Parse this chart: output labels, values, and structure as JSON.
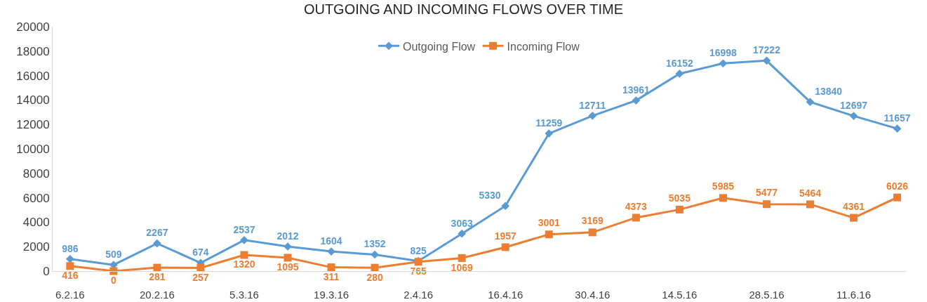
{
  "chart_data": {
    "type": "line",
    "title": "OUTGOING AND INCOMING FLOWS OVER TIME",
    "categories": [
      "6.2.16",
      null,
      "20.2.16",
      null,
      "5.3.16",
      null,
      "19.3.16",
      null,
      "2.4.16",
      null,
      "16.4.16",
      null,
      "30.4.16",
      null,
      "14.5.16",
      null,
      "28.5.16",
      null,
      "11.6.16",
      null
    ],
    "series": [
      {
        "name": "Outgoing Flow",
        "color": "#5b9bd5",
        "marker": "diamond",
        "values": [
          986,
          509,
          2267,
          674,
          2537,
          2012,
          1604,
          1352,
          825,
          3063,
          5330,
          11259,
          12711,
          13961,
          16152,
          16998,
          17222,
          13840,
          12697,
          11657
        ]
      },
      {
        "name": "Incoming Flow",
        "color": "#ed7d31",
        "marker": "square",
        "values": [
          416,
          0,
          281,
          257,
          1320,
          1095,
          311,
          280,
          765,
          1069,
          1957,
          3001,
          3169,
          4373,
          5035,
          5985,
          5477,
          5464,
          4361,
          6026
        ]
      }
    ],
    "ylim": [
      0,
      20000
    ],
    "yticks": [
      0,
      2000,
      4000,
      6000,
      8000,
      10000,
      12000,
      14000,
      16000,
      18000,
      20000
    ],
    "grid": false,
    "legend": "top",
    "data_labels": true,
    "line_style": "solid"
  }
}
